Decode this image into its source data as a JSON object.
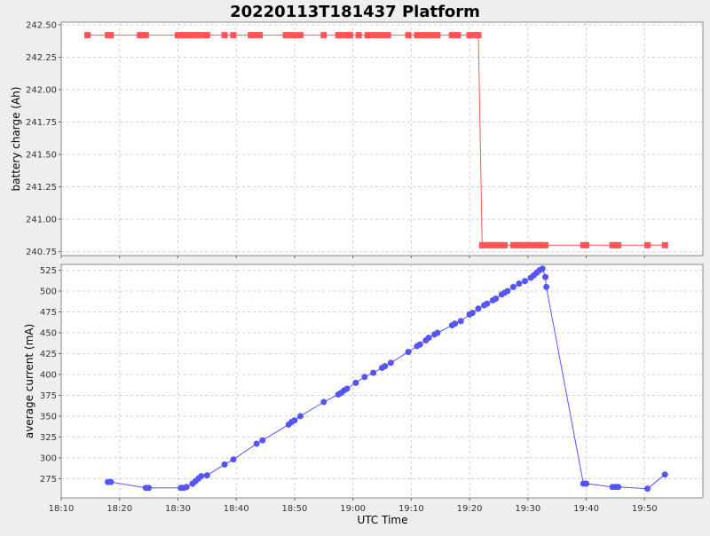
{
  "chart_data": {
    "type": "line",
    "title": "20220113T181437 Platform",
    "xlabel": "UTC Time",
    "x_ticks": [
      "18:10",
      "18:20",
      "18:30",
      "18:40",
      "18:50",
      "19:00",
      "19:10",
      "19:20",
      "19:30",
      "19:40",
      "19:50"
    ],
    "x_range_minutes_after_1810": [
      0,
      110
    ],
    "grid": true,
    "legend": "none",
    "subplots": [
      {
        "name": "battery",
        "ylabel": "battery charge (Ah)",
        "ylim": [
          240.72,
          242.52
        ],
        "y_ticks": [
          "242.50",
          "242.25",
          "242.00",
          "241.75",
          "241.50",
          "241.25",
          "241.00",
          "240.75"
        ],
        "color": "#ff5555",
        "marker": "square",
        "series": [
          {
            "x": [
              "18:14:30",
              "18:18:00",
              "18:18:30",
              "18:23:30",
              "18:24:00",
              "18:24:30",
              "18:30:00",
              "18:30:30",
              "18:31:00",
              "18:31:30",
              "18:32:00",
              "18:32:30",
              "18:33:00",
              "18:33:30",
              "18:34:00",
              "18:34:30",
              "18:35:00",
              "18:38:00",
              "18:39:30",
              "18:42:30",
              "18:43:00",
              "18:43:30",
              "18:44:00",
              "18:48:30",
              "18:49:00",
              "18:49:30",
              "18:50:00",
              "18:51:00",
              "18:55:00",
              "18:57:30",
              "18:58:00",
              "18:58:30",
              "18:59:00",
              "18:59:30",
              "19:01:00",
              "19:02:30",
              "19:03:30",
              "19:04:30",
              "19:05:00",
              "19:05:30",
              "19:06:00",
              "19:09:30",
              "19:11:00",
              "19:12:00",
              "19:12:30",
              "19:13:00",
              "19:13:30",
              "19:14:00",
              "19:14:30",
              "19:17:00",
              "19:17:30",
              "19:18:00",
              "19:20:00",
              "19:20:30",
              "19:21:00",
              "19:21:30",
              "19:22:10",
              "19:22:30",
              "19:23:00",
              "19:23:30",
              "19:24:00",
              "19:24:30",
              "19:25:00",
              "19:25:30",
              "19:26:00",
              "19:27:30",
              "19:28:00",
              "19:28:30",
              "19:29:00",
              "19:29:30",
              "19:30:00",
              "19:30:30",
              "19:31:00",
              "19:31:30",
              "19:32:00",
              "19:32:30",
              "19:33:00",
              "19:39:30",
              "19:40:00",
              "19:44:30",
              "19:45:00",
              "19:45:30",
              "19:50:30",
              "19:53:30"
            ],
            "values": [
              242.42,
              242.42,
              242.42,
              242.42,
              242.42,
              242.42,
              242.42,
              242.42,
              242.42,
              242.42,
              242.42,
              242.42,
              242.42,
              242.42,
              242.42,
              242.42,
              242.42,
              242.42,
              242.42,
              242.42,
              242.42,
              242.42,
              242.42,
              242.42,
              242.42,
              242.42,
              242.42,
              242.42,
              242.42,
              242.42,
              242.42,
              242.42,
              242.42,
              242.42,
              242.42,
              242.42,
              242.42,
              242.42,
              242.42,
              242.42,
              242.42,
              242.42,
              242.42,
              242.42,
              242.42,
              242.42,
              242.42,
              242.42,
              242.42,
              242.42,
              242.42,
              242.42,
              242.42,
              242.42,
              242.42,
              242.42,
              240.8,
              240.8,
              240.8,
              240.8,
              240.8,
              240.8,
              240.8,
              240.8,
              240.8,
              240.8,
              240.8,
              240.8,
              240.8,
              240.8,
              240.8,
              240.8,
              240.8,
              240.8,
              240.8,
              240.8,
              240.8,
              240.8,
              240.8,
              240.8,
              240.8,
              240.8,
              240.8,
              240.8
            ]
          }
        ]
      },
      {
        "name": "current",
        "ylabel": "average current (mA)",
        "ylim": [
          252,
          532
        ],
        "y_ticks": [
          "525",
          "500",
          "475",
          "450",
          "425",
          "400",
          "375",
          "350",
          "325",
          "300",
          "275"
        ],
        "color": "#5555ff",
        "marker": "circle",
        "series": [
          {
            "x": [
              "18:18:00",
              "18:18:30",
              "18:24:30",
              "18:25:00",
              "18:30:30",
              "18:31:00",
              "18:31:30",
              "18:32:30",
              "18:33:00",
              "18:33:30",
              "18:34:00",
              "18:35:00",
              "18:38:00",
              "18:39:30",
              "18:43:30",
              "18:44:30",
              "18:49:00",
              "18:49:30",
              "18:50:00",
              "18:51:00",
              "18:55:00",
              "18:57:30",
              "18:58:00",
              "18:58:30",
              "18:59:00",
              "19:00:30",
              "19:02:00",
              "19:03:30",
              "19:05:00",
              "19:05:30",
              "19:06:30",
              "19:09:30",
              "19:11:00",
              "19:11:30",
              "19:12:30",
              "19:13:00",
              "19:14:00",
              "19:14:30",
              "19:17:00",
              "19:17:30",
              "19:18:30",
              "19:20:00",
              "19:20:30",
              "19:21:30",
              "19:22:30",
              "19:23:00",
              "19:24:00",
              "19:24:30",
              "19:25:30",
              "19:26:00",
              "19:26:30",
              "19:27:30",
              "19:28:30",
              "19:29:30",
              "19:30:30",
              "19:31:00",
              "19:31:30",
              "19:32:00",
              "19:32:30",
              "19:33:00",
              "19:33:10",
              "19:39:30",
              "19:40:00",
              "19:44:30",
              "19:45:00",
              "19:45:30",
              "19:50:30",
              "19:53:30"
            ],
            "values": [
              271,
              271,
              264,
              264,
              264,
              264,
              265,
              269,
              272,
              275,
              278,
              279,
              292,
              298,
              317,
              321,
              340,
              343,
              345,
              350,
              367,
              376,
              378,
              381,
              383,
              390,
              397,
              402,
              408,
              410,
              414,
              427,
              434,
              436,
              441,
              444,
              448,
              450,
              459,
              461,
              464,
              472,
              474,
              479,
              483,
              485,
              489,
              491,
              496,
              498,
              500,
              505,
              509,
              512,
              516,
              519,
              522,
              525,
              527,
              517,
              505,
              269,
              269,
              265,
              265,
              265,
              263,
              280
            ]
          }
        ]
      }
    ]
  }
}
